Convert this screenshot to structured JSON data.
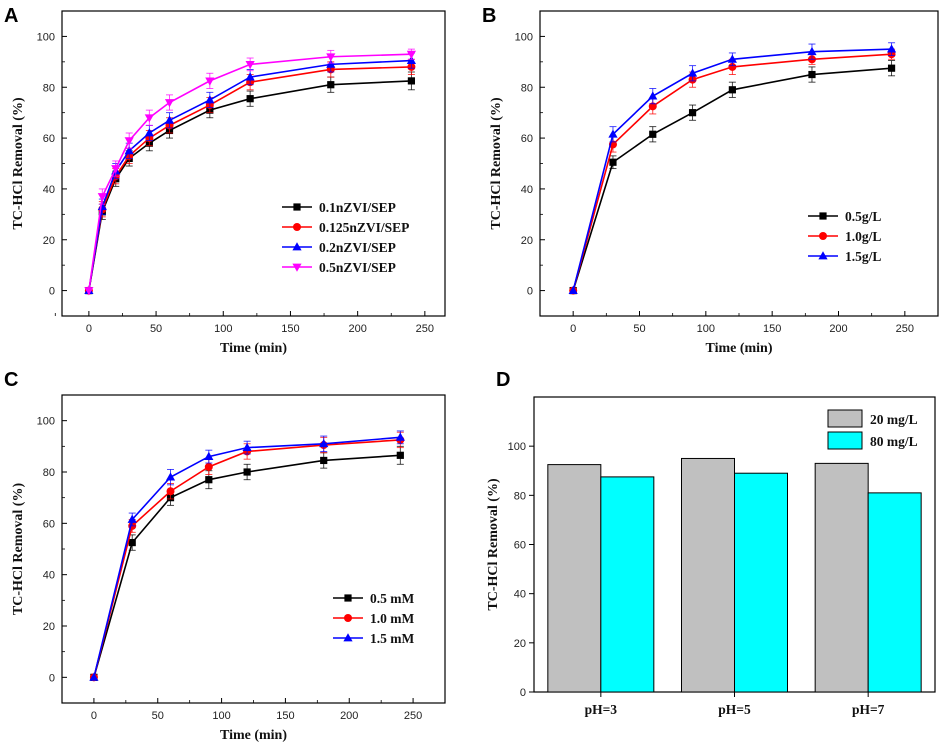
{
  "figure": {
    "panel_letters": [
      "A",
      "B",
      "C",
      "D"
    ]
  },
  "chart_data": [
    {
      "panel": "A",
      "type": "line",
      "xlabel": "Time (min)",
      "ylabel": "TC-HCl Removal (%)",
      "xlim": [
        -20,
        265
      ],
      "ylim": [
        -10,
        110
      ],
      "xticks": [
        0,
        50,
        100,
        150,
        200,
        250
      ],
      "yticks": [
        0,
        20,
        40,
        60,
        80,
        100
      ],
      "legend_position": "bottom-right",
      "x": [
        0,
        10,
        20,
        30,
        45,
        60,
        90,
        120,
        180,
        240
      ],
      "series": [
        {
          "name": "0.1nZVI/SEP",
          "color": "#000000",
          "marker": "square",
          "values": [
            0,
            31,
            44,
            52,
            58,
            63,
            71,
            75.5,
            81,
            82.5
          ],
          "errors": [
            0,
            3,
            3,
            3,
            3,
            3,
            3,
            3,
            3,
            3.5
          ]
        },
        {
          "name": "0.125nZVI/SEP",
          "color": "#ff0000",
          "marker": "circle",
          "values": [
            0,
            32,
            45,
            53,
            60,
            65,
            73,
            82,
            87,
            88
          ],
          "errors": [
            0,
            3,
            3,
            3,
            3,
            3,
            3,
            3,
            3,
            3
          ]
        },
        {
          "name": "0.2nZVI/SEP",
          "color": "#0000ff",
          "marker": "triangle-up",
          "values": [
            0,
            33,
            47,
            55,
            62,
            67,
            75,
            84,
            89,
            90.5
          ],
          "errors": [
            0,
            3,
            3,
            3,
            3,
            3,
            3,
            3,
            3,
            3
          ]
        },
        {
          "name": "0.5nZVI/SEP",
          "color": "#ff00ff",
          "marker": "triangle-down",
          "values": [
            0,
            37,
            48,
            59,
            68,
            74,
            82.5,
            89,
            92,
            93
          ],
          "errors": [
            0,
            3,
            3,
            3,
            3,
            3,
            3,
            2.5,
            2.5,
            2
          ]
        }
      ]
    },
    {
      "panel": "B",
      "type": "line",
      "xlabel": "Time (min)",
      "ylabel": "TC-HCl Removal (%)",
      "xlim": [
        -25,
        275
      ],
      "ylim": [
        -10,
        110
      ],
      "xticks": [
        0,
        50,
        100,
        150,
        200,
        250
      ],
      "yticks": [
        0,
        20,
        40,
        60,
        80,
        100
      ],
      "legend_position": "center-right",
      "x": [
        0,
        30,
        60,
        90,
        120,
        180,
        240
      ],
      "series": [
        {
          "name": "0.5g/L",
          "color": "#000000",
          "marker": "square",
          "values": [
            0,
            50.5,
            61.5,
            70,
            79,
            85,
            87.5
          ],
          "errors": [
            0,
            2.5,
            3,
            3,
            3,
            3,
            3
          ]
        },
        {
          "name": "1.0g/L",
          "color": "#ff0000",
          "marker": "circle",
          "values": [
            0,
            57.5,
            72.5,
            83,
            88,
            91,
            93
          ],
          "errors": [
            0,
            3,
            3,
            3,
            3,
            2,
            2
          ]
        },
        {
          "name": "1.5g/L",
          "color": "#0000ff",
          "marker": "triangle-up",
          "values": [
            0,
            61.5,
            76.5,
            85.5,
            91,
            94,
            95
          ],
          "errors": [
            0,
            3,
            3,
            3,
            2.5,
            3,
            2.5
          ]
        }
      ]
    },
    {
      "panel": "C",
      "type": "line",
      "xlabel": "Time (min)",
      "ylabel": "TC-HCl Removal (%)",
      "xlim": [
        -25,
        275
      ],
      "ylim": [
        -10,
        110
      ],
      "xticks": [
        0,
        50,
        100,
        150,
        200,
        250
      ],
      "yticks": [
        0,
        20,
        40,
        60,
        80,
        100
      ],
      "legend_position": "bottom-right",
      "x": [
        0,
        30,
        60,
        90,
        120,
        180,
        240
      ],
      "series": [
        {
          "name": "0.5 mM",
          "color": "#000000",
          "marker": "square",
          "values": [
            0,
            52.5,
            70,
            77,
            80,
            84.5,
            86.5
          ],
          "errors": [
            0,
            3,
            3,
            3.5,
            3,
            3,
            3.5
          ]
        },
        {
          "name": "1.0 mM",
          "color": "#ff0000",
          "marker": "circle",
          "values": [
            0,
            59,
            72.5,
            82,
            88,
            90.5,
            92.5
          ],
          "errors": [
            0,
            2.5,
            3,
            3,
            3,
            3,
            3
          ]
        },
        {
          "name": "1.5 mM",
          "color": "#0000ff",
          "marker": "triangle-up",
          "values": [
            0,
            61.5,
            78,
            86,
            89.5,
            91,
            93.5
          ],
          "errors": [
            0,
            2.5,
            3,
            2.5,
            2.5,
            3,
            2.5
          ]
        }
      ]
    },
    {
      "panel": "D",
      "type": "bar",
      "ylabel": "TC-HCl Removal (%)",
      "ylim": [
        0,
        120
      ],
      "yticks": [
        0,
        20,
        40,
        60,
        80,
        100
      ],
      "legend_position": "top-right",
      "categories": [
        "pH=3",
        "pH=5",
        "pH=7"
      ],
      "series": [
        {
          "name": "20 mg/L",
          "color": "#c0c0c0",
          "values": [
            92.5,
            95,
            93
          ]
        },
        {
          "name": "80 mg/L",
          "color": "#00ffff",
          "values": [
            87.5,
            89,
            81
          ]
        }
      ]
    }
  ]
}
